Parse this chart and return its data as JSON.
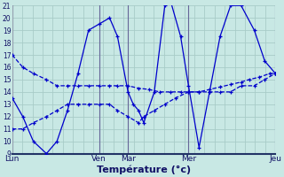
{
  "xlabel": "Température (°c)",
  "background_color": "#c8e8e4",
  "grid_color": "#a8ccc8",
  "line_color": "#0000cc",
  "ylim": [
    9,
    21
  ],
  "yticks": [
    9,
    10,
    11,
    12,
    13,
    14,
    15,
    16,
    17,
    18,
    19,
    20,
    21
  ],
  "day_labels": [
    "Lun",
    "Ven",
    "Mar",
    "Mer",
    "Jeu"
  ],
  "day_positions": [
    0.0,
    0.33,
    0.44,
    0.67,
    1.0
  ],
  "series1_x": [
    0.0,
    0.04,
    0.08,
    0.13,
    0.17,
    0.21,
    0.25,
    0.29,
    0.33,
    0.37,
    0.4,
    0.44,
    0.48,
    0.52,
    0.56,
    0.6,
    0.64,
    0.67,
    0.71,
    0.75,
    0.79,
    0.83,
    0.87,
    0.9,
    0.94,
    0.98,
    1.0
  ],
  "series1_y": [
    17,
    16,
    15.5,
    15,
    14.5,
    14.5,
    14.5,
    14.5,
    14.5,
    14.5,
    14.5,
    14.5,
    14.3,
    14.2,
    14.0,
    14.0,
    14.0,
    14.0,
    14.0,
    14.2,
    14.4,
    14.6,
    14.8,
    15.0,
    15.2,
    15.5,
    15.5
  ],
  "series2_x": [
    0.0,
    0.04,
    0.08,
    0.13,
    0.17,
    0.21,
    0.25,
    0.29,
    0.33,
    0.37,
    0.4,
    0.44,
    0.46,
    0.48,
    0.5,
    0.54,
    0.58,
    0.6,
    0.64,
    0.67,
    0.71,
    0.75,
    0.79,
    0.83,
    0.87,
    0.92,
    0.96,
    1.0
  ],
  "series2_y": [
    13.5,
    12.0,
    10.0,
    9.0,
    10.0,
    12.5,
    15.5,
    19.0,
    19.5,
    20.0,
    18.5,
    14.0,
    13.0,
    12.5,
    11.5,
    14.0,
    21.0,
    21.5,
    18.5,
    14.5,
    9.5,
    14.0,
    18.5,
    21.0,
    21.0,
    19.0,
    16.5,
    15.5
  ],
  "series3_x": [
    0.0,
    0.04,
    0.08,
    0.13,
    0.17,
    0.21,
    0.25,
    0.29,
    0.33,
    0.37,
    0.4,
    0.44,
    0.48,
    0.5,
    0.54,
    0.58,
    0.62,
    0.67,
    0.71,
    0.75,
    0.79,
    0.83,
    0.87,
    0.92,
    0.96,
    1.0
  ],
  "series3_y": [
    11.0,
    11.0,
    11.5,
    12.0,
    12.5,
    13.0,
    13.0,
    13.0,
    13.0,
    13.0,
    12.5,
    12.0,
    11.5,
    12.0,
    12.5,
    13.0,
    13.5,
    14.0,
    14.0,
    14.0,
    14.0,
    14.0,
    14.5,
    14.5,
    15.0,
    15.5
  ]
}
